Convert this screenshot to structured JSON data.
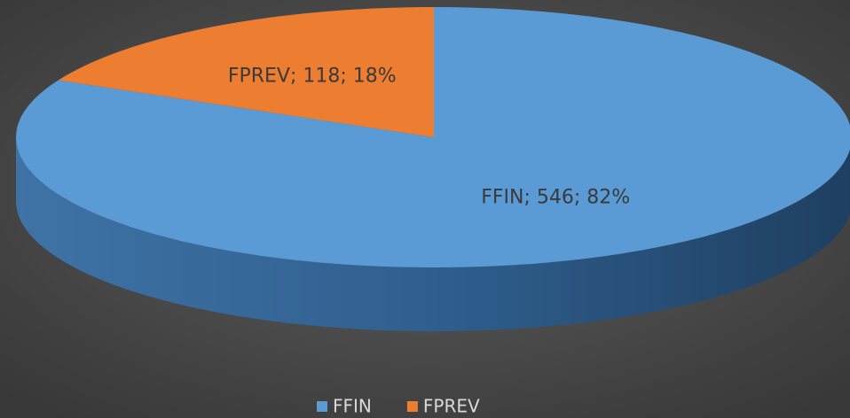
{
  "chart_data": {
    "type": "pie",
    "categories": [
      "FFIN",
      "FPREV"
    ],
    "values": [
      546,
      118
    ],
    "value_labels": [
      "FFIN; 546; 82%",
      "FPREV; 118; 18%"
    ],
    "colors": [
      "#5b9bd5",
      "#ed7d31"
    ],
    "legend": "bottom"
  }
}
